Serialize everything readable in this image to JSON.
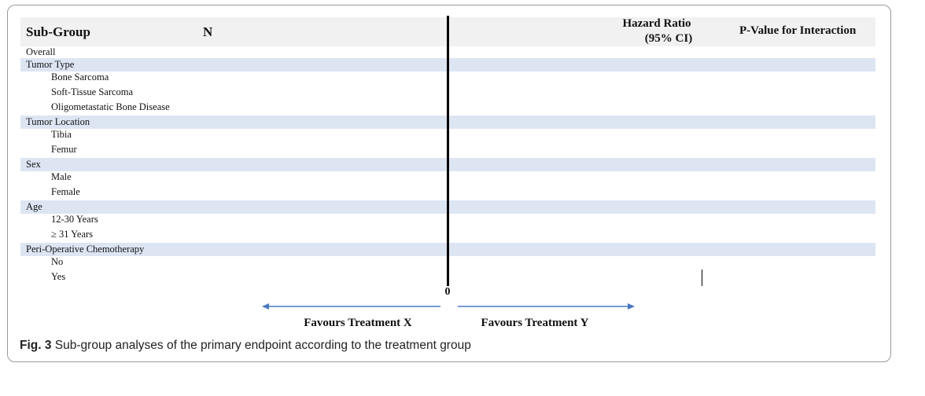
{
  "header": {
    "subgroup": "Sub-Group",
    "n": "N",
    "hazard_ratio_line1": "Hazard Ratio",
    "hazard_ratio_line2": "(95% CI)",
    "p_value": "P-Value for Interaction"
  },
  "rows": [
    {
      "label": "Overall"
    },
    {
      "label": "Tumor Type"
    },
    {
      "label": "Bone Sarcoma"
    },
    {
      "label": "Soft-Tissue Sarcoma"
    },
    {
      "label": "Oligometastatic Bone Disease"
    },
    {
      "label": "Tumor Location"
    },
    {
      "label": "Tibia"
    },
    {
      "label": "Femur"
    },
    {
      "label": "Sex"
    },
    {
      "label": "Male"
    },
    {
      "label": "Female"
    },
    {
      "label": "Age"
    },
    {
      "label": "12-30 Years"
    },
    {
      "label": "≥ 31 Years"
    },
    {
      "label": "Peri-Operative Chemotherapy"
    },
    {
      "label": "No"
    },
    {
      "label": "Yes"
    }
  ],
  "axis": {
    "zero_label": "0",
    "favours_left": "Favours Treatment X",
    "favours_right": "Favours Treatment Y"
  },
  "caption": {
    "figure_label": "Fig. 3",
    "text": "Sub-group analyses of the primary endpoint according to the treatment group"
  },
  "colors": {
    "arrow": "#4a78c2",
    "group_band": "#dde5f3",
    "header_band": "#f1f1f1"
  }
}
